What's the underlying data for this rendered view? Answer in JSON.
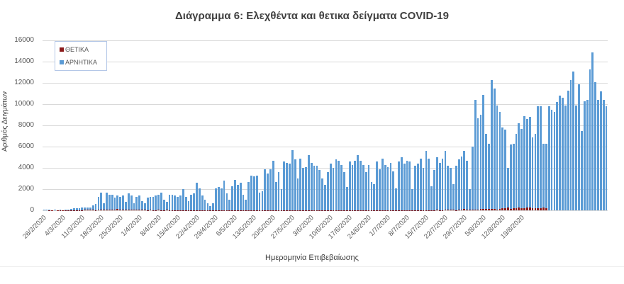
{
  "chart_data": {
    "type": "bar",
    "title": "Διάγραμμα 6: Ελεχθέντα και θετικα δείγματα COVID-19",
    "xlabel": "Ημερομηνία Επιβεβαίωσης",
    "ylabel": "Αριθμός Δειγμάτων",
    "ylim": [
      0,
      16000
    ],
    "yticks": [
      0,
      2000,
      4000,
      6000,
      8000,
      10000,
      12000,
      14000,
      16000
    ],
    "grid": true,
    "legend_position": "top-left",
    "x_start": "26/2/2020",
    "x_ticks": [
      "26/2/2020",
      "4/3/2020",
      "11/3/2020",
      "18/3/2020",
      "25/3/2020",
      "1/4/2020",
      "8/4/2020",
      "15/4/2020",
      "22/4/2020",
      "29/4/2020",
      "6/5/2020",
      "13/5/2020",
      "20/5/2020",
      "27/5/2020",
      "3/6/2020",
      "10/6/2020",
      "17/6/2020",
      "24/6/2020",
      "1/7/2020",
      "8/7/2020",
      "15/7/2020",
      "22/7/2020",
      "29/7/2020",
      "5/8/2020",
      "12/8/2020",
      "19/8/2020"
    ],
    "series": [
      {
        "name": "ΘΕΤΙΚΑ",
        "color": "#8b1a1a",
        "values": [
          0,
          0,
          3,
          1,
          0,
          2,
          2,
          7,
          14,
          10,
          21,
          19,
          28,
          32,
          34,
          40,
          41,
          41,
          52,
          31,
          54,
          69,
          71,
          64,
          38,
          82,
          91,
          103,
          79,
          99,
          87,
          60,
          74,
          95,
          88,
          56,
          40,
          61,
          20,
          46,
          34,
          22,
          41,
          27,
          15,
          48,
          12,
          16,
          15,
          26,
          22,
          15,
          18,
          10,
          8,
          7,
          17,
          12,
          10,
          5,
          8,
          10,
          5,
          3,
          6,
          4,
          3,
          8,
          12,
          6,
          4,
          7,
          3,
          8,
          6,
          5,
          2,
          10,
          3,
          2,
          5,
          4,
          7,
          3,
          5,
          8,
          4,
          6,
          2,
          4,
          3,
          2,
          1,
          3,
          5,
          6,
          10,
          2,
          4,
          5,
          2,
          3,
          4,
          5,
          6,
          8,
          3,
          7,
          10,
          4,
          5,
          8,
          6,
          5,
          10,
          8,
          9,
          12,
          14,
          10,
          22,
          11,
          28,
          10,
          20,
          19,
          18,
          11,
          12,
          14,
          16,
          21,
          8,
          30,
          25,
          10,
          13,
          21,
          17,
          9,
          15,
          24,
          33,
          28,
          35,
          23,
          21,
          78,
          37,
          43,
          50,
          27,
          36,
          58,
          110,
          78,
          64,
          45,
          41,
          88,
          124,
          110,
          110,
          151,
          121,
          102,
          95,
          153,
          190,
          203,
          262,
          156,
          169,
          216,
          262,
          204,
          223,
          284,
          269,
          201,
          168,
          196,
          214,
          235,
          229
        ],
        "note": "small values near baseline; approximate"
      },
      {
        "name": "ΑΡΝΗΤΙΚΑ",
        "color": "#5b9bd5",
        "values": [
          60,
          80,
          40,
          0,
          50,
          0,
          60,
          0,
          80,
          100,
          150,
          200,
          220,
          200,
          250,
          300,
          300,
          280,
          500,
          600,
          1300,
          1700,
          700,
          1700,
          1500,
          1500,
          1200,
          1400,
          1300,
          1400,
          800,
          1600,
          1400,
          700,
          1300,
          1400,
          900,
          700,
          1200,
          1300,
          1300,
          1400,
          1500,
          1700,
          1000,
          800,
          1500,
          1500,
          1400,
          1300,
          1400,
          2000,
          1300,
          900,
          1500,
          1600,
          2600,
          2100,
          1400,
          1000,
          700,
          400,
          700,
          2100,
          2200,
          2100,
          2800,
          1600,
          1000,
          2300,
          2900,
          2400,
          2600,
          1500,
          1000,
          2700,
          3300,
          3200,
          3300,
          1700,
          1800,
          3900,
          3500,
          3900,
          4700,
          2700,
          3600,
          2000,
          4600,
          4500,
          4400,
          5700,
          4800,
          3000,
          4900,
          4000,
          4100,
          5200,
          4500,
          4200,
          4200,
          3800,
          3000,
          2400,
          3600,
          4400,
          4000,
          4800,
          4700,
          4300,
          3600,
          2200,
          4600,
          4300,
          4700,
          5200,
          4700,
          4300,
          3600,
          4300,
          2700,
          2500,
          4600,
          3900,
          4900,
          4300,
          4100,
          4500,
          3700,
          2100,
          4600,
          5000,
          4400,
          4700,
          4600,
          2000,
          4200,
          4400,
          4900,
          4000,
          5600,
          4900,
          2300,
          3800,
          5000,
          4500,
          4900,
          5600,
          4200,
          4000,
          2500,
          4200,
          4800,
          5100,
          5600,
          4700,
          2000,
          6000,
          10400,
          8700,
          9000,
          10900,
          7200,
          6300,
          12300,
          11500,
          9900,
          9300,
          7800,
          7600,
          4000,
          6200,
          6300,
          7200,
          8200,
          7700,
          8900,
          8600,
          8800,
          6900,
          7200,
          9800,
          9800,
          6300,
          6300,
          9800,
          9500,
          9300,
          10200,
          10800,
          10600,
          9900,
          11300,
          12300,
          13100,
          9900,
          11900,
          7500,
          10300,
          10400,
          13300,
          14900,
          12100,
          10400,
          11200,
          10400,
          9800
        ]
      }
    ]
  },
  "legend": {
    "positive_label": "ΘΕΤΙΚΑ",
    "negative_label": "ΑΡΝΗΤΙΚΑ"
  },
  "axis": {
    "y_ticks_labels": [
      "16000",
      "14000",
      "12000",
      "10000",
      "8000",
      "6000",
      "4000",
      "2000",
      "0"
    ]
  }
}
